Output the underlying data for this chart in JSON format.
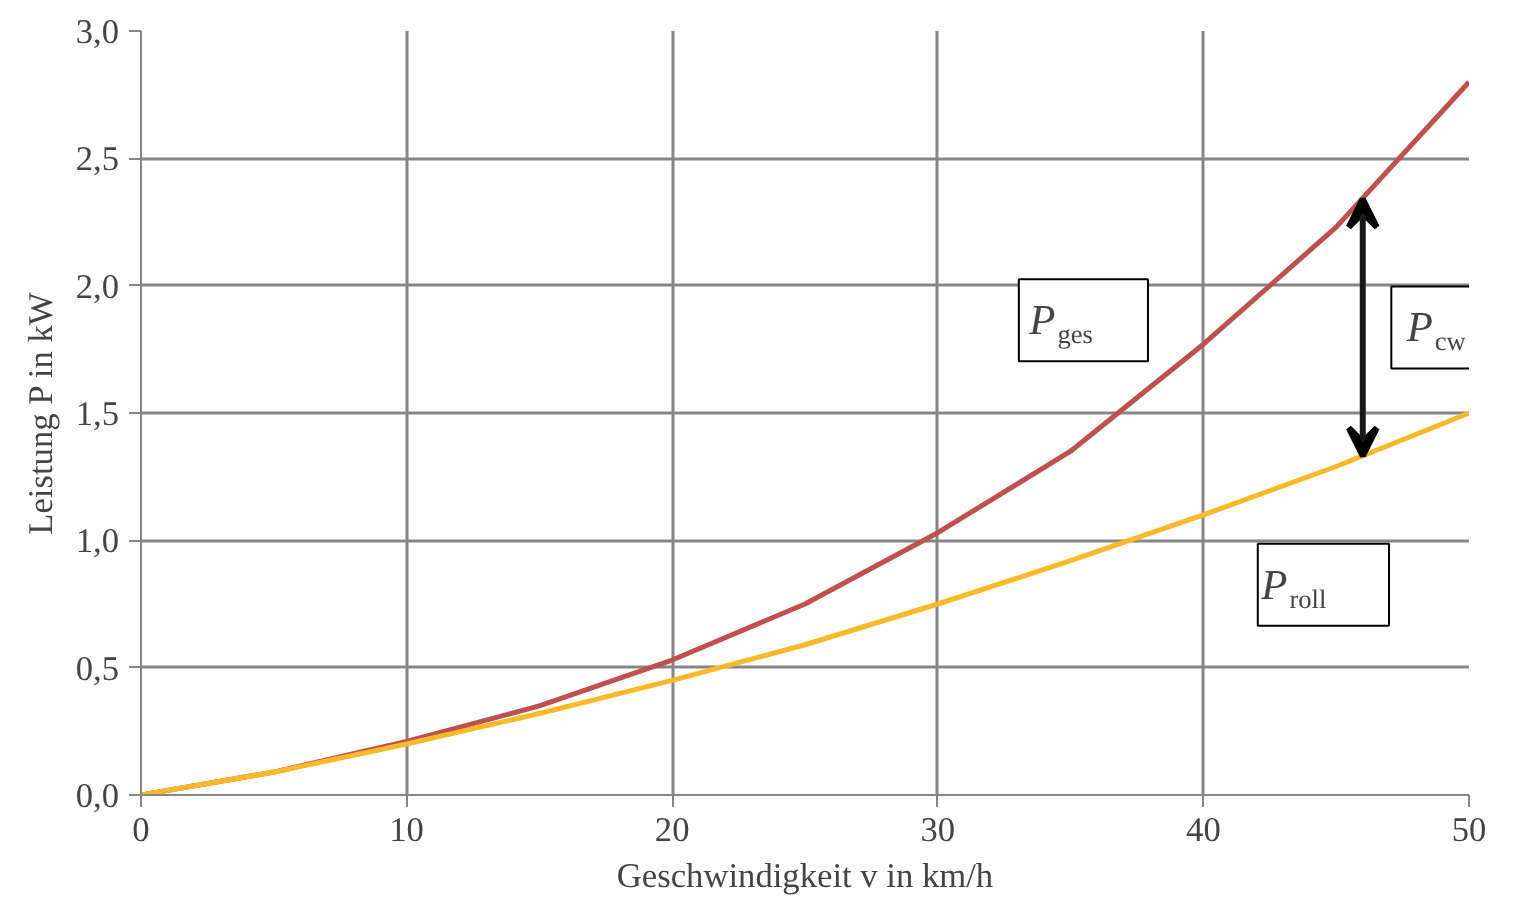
{
  "chart_data": {
    "type": "line",
    "xlabel": "Geschwindigkeit v in km/h",
    "ylabel": "Leistung P in kW",
    "x": [
      0,
      5,
      10,
      15,
      20,
      25,
      30,
      35,
      40,
      45,
      50
    ],
    "series": [
      {
        "name": "P$_{ges}$",
        "color": "#c0504d",
        "values": [
          0,
          0.09,
          0.21,
          0.35,
          0.53,
          0.75,
          1.03,
          1.35,
          1.77,
          2.23,
          2.8
        ]
      },
      {
        "name": "P$_{roll}$",
        "color": "#fbb92a",
        "values": [
          0,
          0.09,
          0.2,
          0.32,
          0.45,
          0.59,
          0.75,
          0.92,
          1.1,
          1.29,
          1.5
        ]
      }
    ],
    "annotations": [
      {
        "text": "P$_{cw}$",
        "x": 46,
        "y": 2.34
      }
    ],
    "xlim": [
      0,
      50
    ],
    "xticks": [
      0,
      10,
      20,
      30,
      40,
      50
    ],
    "ylim": [
      0,
      3
    ],
    "yticks": [
      {
        "value": 0,
        "label": "0,0"
      },
      {
        "value": 0.5,
        "label": "0,5"
      },
      {
        "value": 1,
        "label": "1,0"
      },
      {
        "value": 1.5,
        "label": "1,5"
      },
      {
        "value": 2,
        "label": "2,0"
      },
      {
        "value": 2.5,
        "label": "2,5"
      },
      {
        "value": 3,
        "label": "3,0"
      }
    ],
    "grid": true,
    "marker": "none",
    "line_style": "solid"
  }
}
